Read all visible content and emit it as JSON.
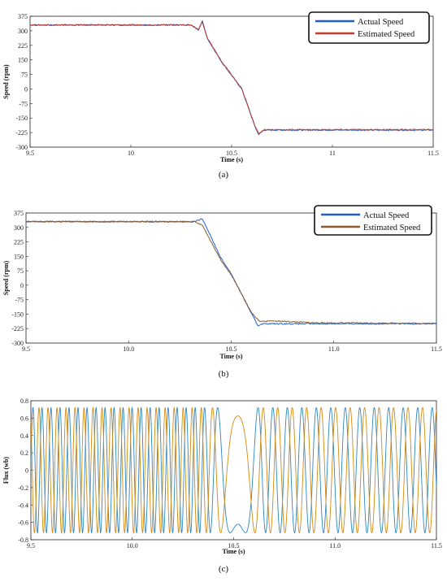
{
  "chart_data": [
    {
      "id": "a",
      "type": "line",
      "caption": "(a)",
      "xlabel": "Time (s)",
      "ylabel": "Speed (rpm)",
      "xlim": [
        9.5,
        11.5
      ],
      "ylim": [
        -300,
        375
      ],
      "xticks": [
        "9.5",
        "10",
        "10.5",
        "11",
        "11.5"
      ],
      "xtick_values": [
        9.5,
        10,
        10.5,
        11,
        11.5
      ],
      "yticks": [
        "375",
        "300",
        "225",
        "150",
        "75",
        "0",
        "-75",
        "-150",
        "-225",
        "-300"
      ],
      "ytick_values": [
        375,
        300,
        225,
        150,
        75,
        0,
        -75,
        -150,
        -225,
        -300
      ],
      "grid": false,
      "legend_position": "top-right",
      "series": [
        {
          "name": "Actual Speed",
          "color": "#1f5fc8",
          "points": [
            [
              9.5,
              330
            ],
            [
              10.3,
              330
            ],
            [
              10.335,
              305
            ],
            [
              10.355,
              350
            ],
            [
              10.38,
              260
            ],
            [
              10.45,
              140
            ],
            [
              10.55,
              0
            ],
            [
              10.62,
              -205
            ],
            [
              10.635,
              -235
            ],
            [
              10.66,
              -212
            ],
            [
              10.8,
              -212
            ],
            [
              11.5,
              -212
            ]
          ]
        },
        {
          "name": "Estimated Speed",
          "color": "#c0392b",
          "points": [
            [
              9.5,
              330
            ],
            [
              10.3,
              330
            ],
            [
              10.335,
              305
            ],
            [
              10.355,
              345
            ],
            [
              10.38,
              262
            ],
            [
              10.45,
              142
            ],
            [
              10.55,
              2
            ],
            [
              10.62,
              -202
            ],
            [
              10.635,
              -230
            ],
            [
              10.66,
              -210
            ],
            [
              10.8,
              -210
            ],
            [
              11.5,
              -210
            ]
          ]
        }
      ]
    },
    {
      "id": "b",
      "type": "line",
      "caption": "(b)",
      "xlabel": "Time (s)",
      "ylabel": "Speed (rpm)",
      "xlim": [
        9.5,
        11.5
      ],
      "ylim": [
        -300,
        375
      ],
      "xticks": [
        "9.5",
        "10.0",
        "10.5",
        "11.0",
        "11.5"
      ],
      "xtick_values": [
        9.5,
        10.0,
        10.5,
        11.0,
        11.5
      ],
      "yticks": [
        "375",
        "300",
        "225",
        "150",
        "75",
        "0",
        "-75",
        "-150",
        "-225",
        "-300"
      ],
      "ytick_values": [
        375,
        300,
        225,
        150,
        75,
        0,
        -75,
        -150,
        -225,
        -300
      ],
      "grid": false,
      "legend_position": "top-right",
      "series": [
        {
          "name": "Actual Speed",
          "color": "#1f5fc8",
          "points": [
            [
              9.5,
              330
            ],
            [
              10.32,
              330
            ],
            [
              10.36,
              345
            ],
            [
              10.38,
              300
            ],
            [
              10.45,
              140
            ],
            [
              10.5,
              60
            ],
            [
              10.6,
              -150
            ],
            [
              10.63,
              -210
            ],
            [
              10.65,
              -200
            ],
            [
              10.8,
              -200
            ],
            [
              11.5,
              -200
            ]
          ]
        },
        {
          "name": "Estimated Speed",
          "color": "#8b5a2b",
          "points": [
            [
              9.5,
              330
            ],
            [
              10.32,
              330
            ],
            [
              10.36,
              310
            ],
            [
              10.45,
              130
            ],
            [
              10.5,
              55
            ],
            [
              10.6,
              -145
            ],
            [
              10.64,
              -190
            ],
            [
              10.7,
              -185
            ],
            [
              10.9,
              -195
            ],
            [
              11.5,
              -198
            ]
          ]
        }
      ]
    },
    {
      "id": "c",
      "type": "line",
      "caption": "(c)",
      "xlabel": "Time (s)",
      "ylabel": "Flux (wb)",
      "xlim": [
        9.5,
        11.5
      ],
      "ylim": [
        -0.8,
        0.8
      ],
      "xticks": [
        "9.5",
        "10.0",
        "10.5",
        "11.0",
        "11.5"
      ],
      "xtick_values": [
        9.5,
        10.0,
        10.5,
        11.0,
        11.5
      ],
      "yticks": [
        "0.8",
        "0.6",
        "0.4",
        "0.2",
        "0",
        "-0.2",
        "-0.4",
        "-0.6",
        "-0.8"
      ],
      "ytick_values": [
        0.8,
        0.6,
        0.4,
        0.2,
        0,
        -0.2,
        -0.4,
        -0.6,
        -0.8
      ],
      "grid": false,
      "amplitude": 0.72,
      "series": [
        {
          "color": "#2e86c1"
        },
        {
          "color": "#d68910"
        }
      ]
    }
  ]
}
